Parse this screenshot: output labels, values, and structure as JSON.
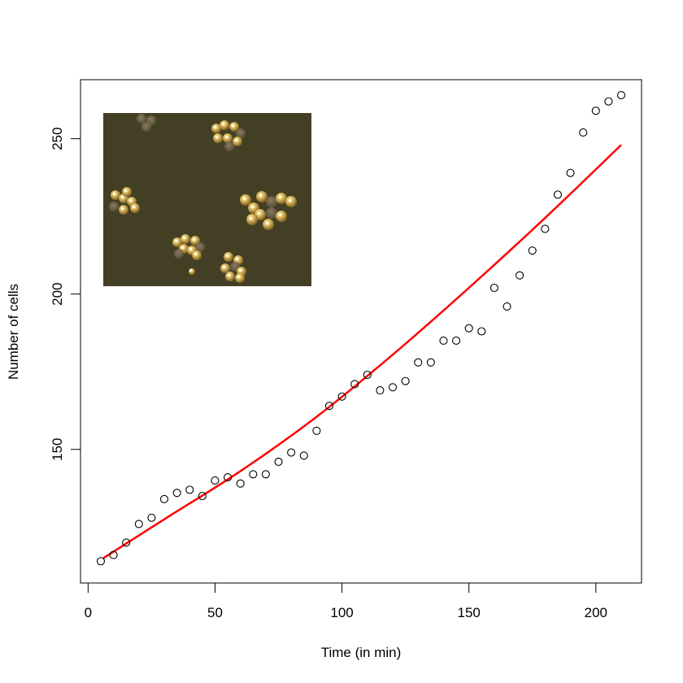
{
  "chart_data": {
    "type": "scatter",
    "title": "",
    "xlabel": "Time (in min)",
    "ylabel": "Number of cells",
    "xlim": [
      -3,
      218
    ],
    "ylim": [
      107,
      269
    ],
    "x_ticks": [
      0,
      50,
      100,
      150,
      200
    ],
    "y_ticks": [
      150,
      200,
      250
    ],
    "grid": false,
    "series": [
      {
        "marker": "open-circle",
        "color": "#000000",
        "x": [
          5,
          10,
          15,
          20,
          25,
          30,
          35,
          40,
          45,
          50,
          55,
          60,
          65,
          70,
          75,
          80,
          85,
          90,
          95,
          100,
          105,
          110,
          115,
          120,
          125,
          130,
          135,
          140,
          145,
          150,
          155,
          160,
          165,
          170,
          175,
          180,
          185,
          190,
          195,
          200,
          205,
          210
        ],
        "y": [
          114,
          116,
          120,
          126,
          128,
          134,
          136,
          137,
          135,
          140,
          141,
          139,
          142,
          142,
          146,
          149,
          148,
          156,
          164,
          167,
          171,
          174,
          169,
          170,
          172,
          178,
          178,
          185,
          185,
          189,
          188,
          202,
          196,
          206,
          214,
          221,
          232,
          239,
          252,
          259,
          262,
          264
        ]
      }
    ],
    "fit_curve": {
      "color": "#ff0000",
      "x": [
        6,
        30,
        60,
        90,
        120,
        150,
        180,
        210
      ],
      "y": [
        115,
        127.5,
        143,
        160.5,
        180.5,
        202,
        224.5,
        248
      ]
    },
    "inset": {
      "description_tag": "microscope-image",
      "background_color": "#4a4628",
      "cell_color": "#e8c060"
    }
  }
}
